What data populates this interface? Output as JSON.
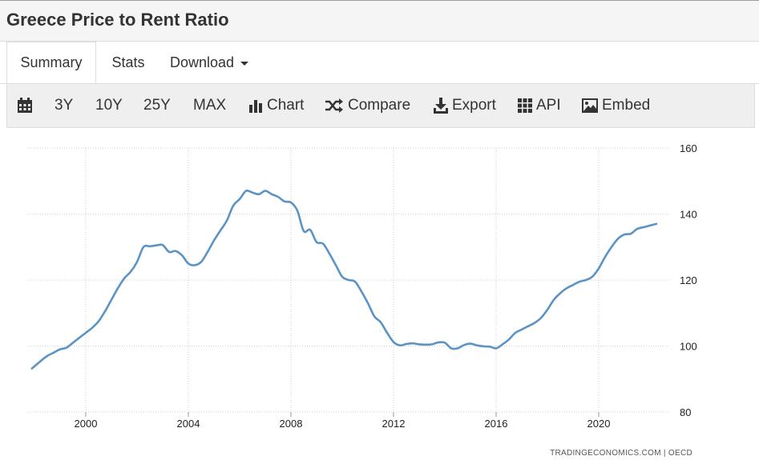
{
  "page": {
    "title": "Greece Price to Rent Ratio"
  },
  "tabs": [
    {
      "label": "Summary",
      "active": true
    },
    {
      "label": "Stats",
      "active": false
    },
    {
      "label": "Download",
      "active": false
    }
  ],
  "toolbar": {
    "calendar_icon": "calendar-icon",
    "ranges": [
      "3Y",
      "10Y",
      "25Y",
      "MAX"
    ],
    "chart_label": "Chart",
    "compare_label": "Compare",
    "export_label": "Export",
    "api_label": "API",
    "embed_label": "Embed"
  },
  "colors": {
    "line": "#5b93c5",
    "grid": "#cfcfcf",
    "toolbar_bg": "#efefef"
  },
  "chart_data": {
    "type": "line",
    "title": "",
    "xlabel": "",
    "ylabel": "",
    "xlim": [
      1997.75,
      2022.75
    ],
    "ylim": [
      80,
      160
    ],
    "x_ticks": [
      2000,
      2004,
      2008,
      2012,
      2016,
      2020
    ],
    "y_ticks": [
      80,
      100,
      120,
      140,
      160
    ],
    "y_axis_side": "right",
    "grid": "dotted",
    "source": "TRADINGECONOMICS.COM  |  OECD",
    "series": [
      {
        "x": [
          1997.9,
          1998.25,
          1998.5,
          1998.75,
          1999.0,
          1999.25,
          1999.5,
          1999.75,
          2000.0,
          2000.25,
          2000.5,
          2000.75,
          2001.0,
          2001.25,
          2001.5,
          2001.75,
          2002.0,
          2002.25,
          2002.5,
          2002.75,
          2003.0,
          2003.25,
          2003.5,
          2003.75,
          2004.0,
          2004.25,
          2004.5,
          2004.75,
          2005.0,
          2005.25,
          2005.5,
          2005.75,
          2006.0,
          2006.25,
          2006.5,
          2006.75,
          2007.0,
          2007.25,
          2007.5,
          2007.75,
          2008.0,
          2008.25,
          2008.5,
          2008.75,
          2009.0,
          2009.25,
          2009.5,
          2009.75,
          2010.0,
          2010.25,
          2010.5,
          2010.75,
          2011.0,
          2011.25,
          2011.5,
          2011.75,
          2012.0,
          2012.25,
          2012.5,
          2012.75,
          2013.0,
          2013.25,
          2013.5,
          2013.75,
          2014.0,
          2014.25,
          2014.5,
          2014.75,
          2015.0,
          2015.25,
          2015.5,
          2015.75,
          2016.0,
          2016.25,
          2016.5,
          2016.75,
          2017.0,
          2017.25,
          2017.5,
          2017.75,
          2018.0,
          2018.25,
          2018.5,
          2018.75,
          2019.0,
          2019.25,
          2019.5,
          2019.75,
          2020.0,
          2020.25,
          2020.5,
          2020.75,
          2021.0,
          2021.25,
          2021.5,
          2021.75,
          2022.0,
          2022.25
        ],
        "values": [
          93.2,
          95.5,
          97.0,
          98.0,
          99.0,
          99.5,
          101.0,
          102.5,
          104.0,
          105.5,
          107.5,
          110.5,
          114.0,
          117.5,
          120.5,
          122.5,
          125.5,
          130.0,
          130.2,
          130.5,
          130.6,
          128.5,
          128.8,
          127.5,
          125.0,
          124.5,
          125.5,
          128.5,
          132.0,
          135.0,
          138.0,
          142.5,
          144.5,
          147.0,
          146.5,
          146.0,
          147.0,
          146.0,
          145.2,
          143.8,
          143.5,
          141.0,
          134.8,
          135.2,
          131.5,
          131.0,
          128.0,
          124.5,
          121.0,
          120.0,
          119.5,
          116.5,
          113.0,
          109.0,
          107.2,
          104.0,
          101.2,
          100.2,
          100.6,
          100.8,
          100.5,
          100.4,
          100.5,
          101.1,
          101.0,
          99.3,
          99.3,
          100.3,
          100.7,
          100.2,
          99.9,
          99.8,
          99.3,
          100.5,
          102.0,
          104.0,
          105.0,
          106.0,
          107.0,
          108.5,
          111.0,
          114.0,
          116.0,
          117.5,
          118.5,
          119.5,
          120.0,
          121.0,
          123.5,
          127.0,
          130.0,
          132.5,
          133.8,
          134.0,
          135.5,
          136.0,
          136.5,
          137.0
        ]
      }
    ]
  }
}
